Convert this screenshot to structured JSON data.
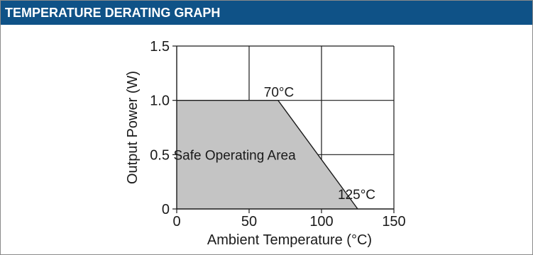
{
  "header": {
    "title": "TEMPERATURE DERATING GRAPH"
  },
  "colors": {
    "header_bg": "#0f5287",
    "area_fill": "#c4c4c4"
  },
  "chart_data": {
    "type": "area",
    "xlabel": "Ambient Temperature (°C)",
    "ylabel": "Output Power (W)",
    "xlim": [
      0,
      150
    ],
    "ylim": [
      0,
      1.5
    ],
    "x_ticks": [
      0,
      50,
      100,
      150
    ],
    "x_tick_labels": [
      "0",
      "50",
      "100",
      "150"
    ],
    "y_ticks": [
      0,
      0.5,
      1.0,
      1.5
    ],
    "y_tick_labels": [
      "0",
      "0.5",
      "1.0",
      "1.5"
    ],
    "grid": true,
    "series": [
      {
        "x": [
          0,
          70,
          125
        ],
        "y": [
          1.0,
          1.0,
          0
        ]
      }
    ],
    "annotations": [
      {
        "text": "70°C",
        "x": 70,
        "y": 1.0
      },
      {
        "text": "125°C",
        "x": 125,
        "y": 0
      }
    ],
    "area_label": "Safe Operating Area"
  }
}
